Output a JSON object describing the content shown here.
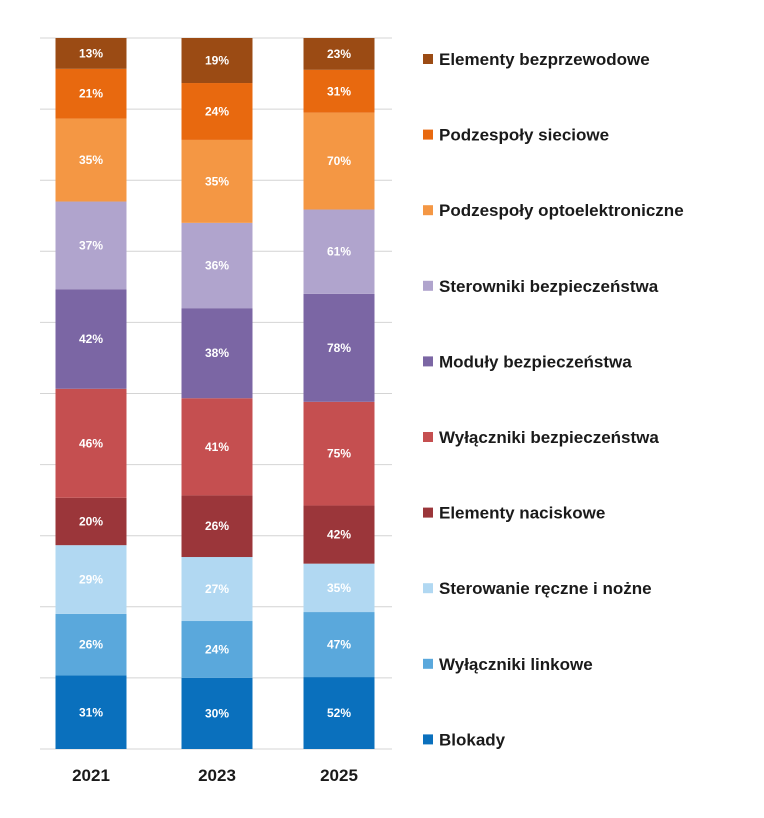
{
  "chart_data": {
    "type": "bar",
    "stacked": true,
    "normalized_per_category": true,
    "categories": [
      "2021",
      "2023",
      "2025"
    ],
    "series": [
      {
        "name": "Blokady",
        "color": "#0a70bd",
        "values": [
          31,
          30,
          52
        ]
      },
      {
        "name": "Wyłączniki linkowe",
        "color": "#5aa8dc",
        "values": [
          26,
          24,
          47
        ]
      },
      {
        "name": "Sterowanie ręczne i nożne",
        "color": "#b1d8f2",
        "values": [
          29,
          27,
          35
        ]
      },
      {
        "name": "Elementy naciskowe",
        "color": "#9b363a",
        "values": [
          20,
          26,
          42
        ]
      },
      {
        "name": "Wyłączniki bezpieczeństwa",
        "color": "#c54f50",
        "values": [
          46,
          41,
          75
        ]
      },
      {
        "name": "Moduły bezpieczeństwa",
        "color": "#7b66a4",
        "values": [
          42,
          38,
          78
        ]
      },
      {
        "name": "Sterowniki bezpieczeństwa",
        "color": "#b0a4cd",
        "values": [
          37,
          36,
          61
        ]
      },
      {
        "name": "Podzespoły optoelektroniczne",
        "color": "#f49744",
        "values": [
          35,
          35,
          70
        ]
      },
      {
        "name": "Podzespoły sieciowe",
        "color": "#e8690f",
        "values": [
          21,
          24,
          31
        ]
      },
      {
        "name": "Elementy bezprzewodowe",
        "color": "#9b4b14",
        "values": [
          13,
          19,
          23
        ]
      }
    ],
    "value_suffix": "%",
    "legend_position": "right",
    "grid": true,
    "title": "",
    "xlabel": "",
    "ylabel": ""
  }
}
